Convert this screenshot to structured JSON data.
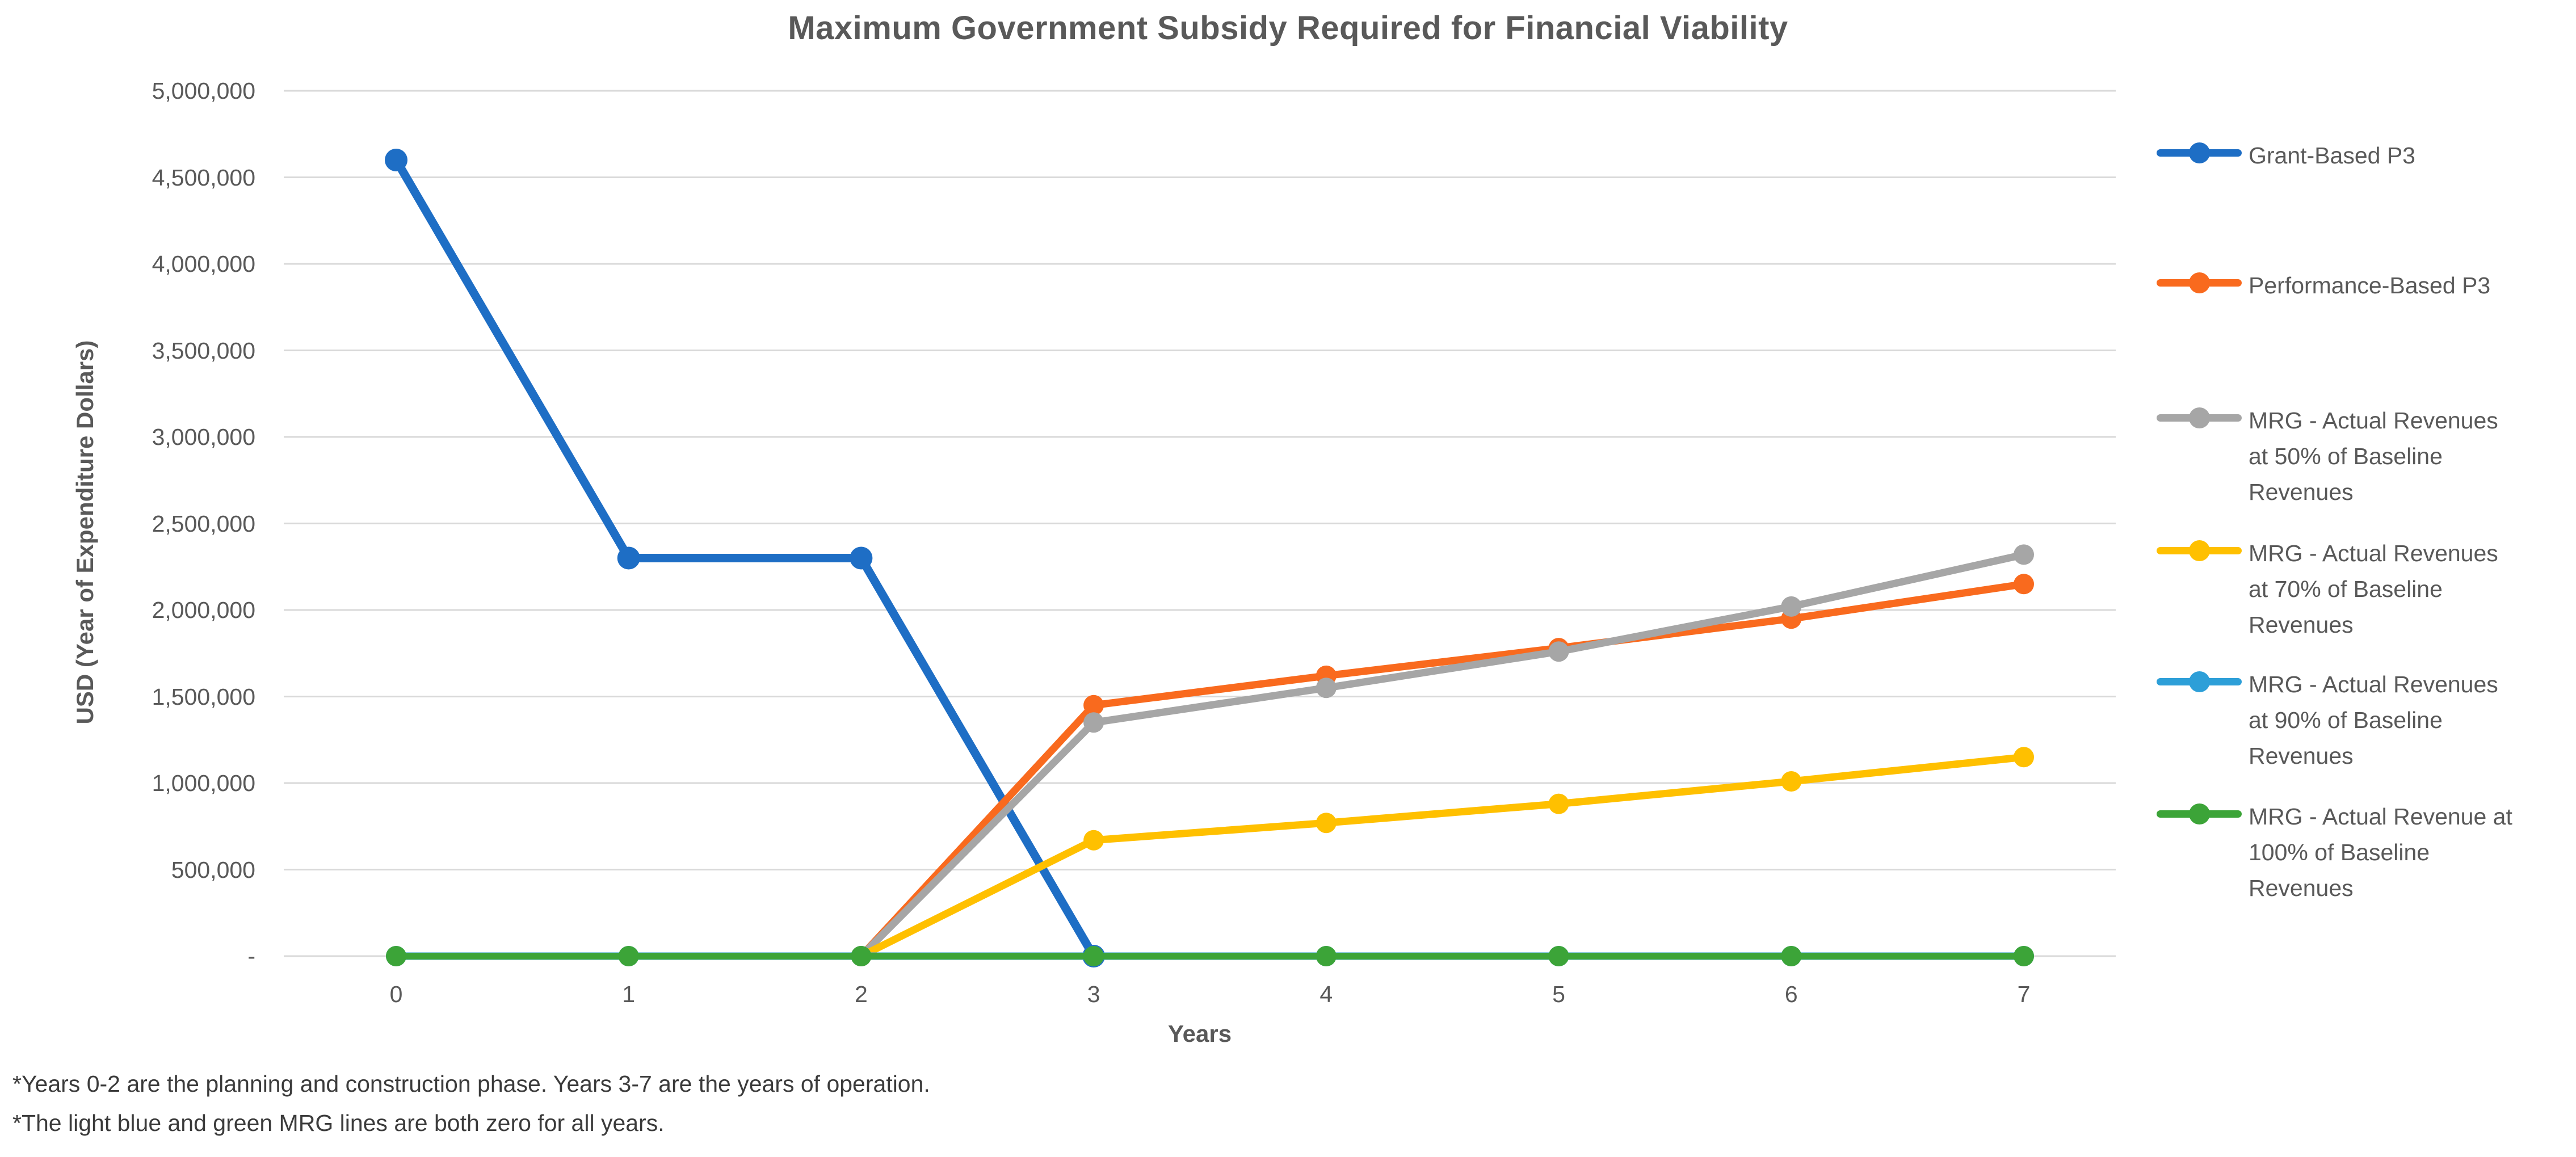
{
  "chart_data": {
    "type": "line",
    "title": "Maximum Government Subsidy Required for Financial Viability",
    "xlabel": "Years",
    "ylabel": "USD (Year of Expenditure Dollars)",
    "x": [
      0,
      1,
      2,
      3,
      4,
      5,
      6,
      7
    ],
    "x_tick_labels": [
      "0",
      "1",
      "2",
      "3",
      "4",
      "5",
      "6",
      "7"
    ],
    "ylim": [
      0,
      5000000
    ],
    "y_gridline_step": 500000,
    "y_tick_labels_top_to_bottom": [
      "5,000,000",
      "4,500,000",
      "4,000,000",
      "3,500,000",
      "3,000,000",
      "2,500,000",
      "2,000,000",
      "1,500,000",
      "1,000,000",
      "500,000",
      "-"
    ],
    "grid": "horizontal-only",
    "legend_position": "right",
    "series": [
      {
        "name": "Grant-Based P3",
        "color": "#1E6EC5",
        "values": [
          4600000,
          2300000,
          2300000,
          0,
          null,
          null,
          null,
          null
        ]
      },
      {
        "name": "Performance-Based P3",
        "color": "#F96A1E",
        "values": [
          null,
          null,
          0,
          1450000,
          1620000,
          1780000,
          1950000,
          2150000
        ]
      },
      {
        "name": "MRG - Actual Revenues at 50% of Baseline Revenues",
        "color": "#A6A6A6",
        "values": [
          null,
          null,
          0,
          1350000,
          1550000,
          1760000,
          2020000,
          2320000
        ]
      },
      {
        "name": "MRG - Actual Revenues at 70% of Baseline Revenues",
        "color": "#FFC000",
        "values": [
          null,
          null,
          0,
          670000,
          770000,
          880000,
          1010000,
          1150000
        ]
      },
      {
        "name": "MRG - Actual Revenues at 90% of Baseline Revenues",
        "color": "#2D9FD8",
        "values": [
          0,
          0,
          0,
          0,
          0,
          0,
          0,
          0
        ]
      },
      {
        "name": "MRG - Actual Revenue at 100% of Baseline Revenues",
        "color": "#3CA438",
        "values": [
          0,
          0,
          0,
          0,
          0,
          0,
          0,
          0
        ]
      }
    ],
    "legend_items": [
      {
        "lines": [
          "Grant-Based P3"
        ]
      },
      {
        "lines": [
          "Performance-Based P3"
        ]
      },
      {
        "lines": [
          "MRG - Actual Revenues",
          "at 50% of Baseline",
          "Revenues"
        ]
      },
      {
        "lines": [
          "MRG - Actual Revenues",
          "at 70% of Baseline",
          "Revenues"
        ]
      },
      {
        "lines": [
          "MRG - Actual Revenues",
          "at 90% of Baseline",
          "Revenues"
        ]
      },
      {
        "lines": [
          "MRG - Actual Revenue at",
          "100% of Baseline",
          "Revenues"
        ]
      }
    ],
    "footnotes": [
      "*Years 0-2 are the planning and construction phase. Years 3-7 are the years of operation.",
      "*The light blue and green MRG lines are both zero for all years."
    ],
    "colors": {
      "gridline": "#D9D9D9",
      "axis_text": "#595959",
      "title_text": "#595959",
      "footnote_text": "#3B3B3B",
      "background": "#FFFFFF"
    }
  }
}
